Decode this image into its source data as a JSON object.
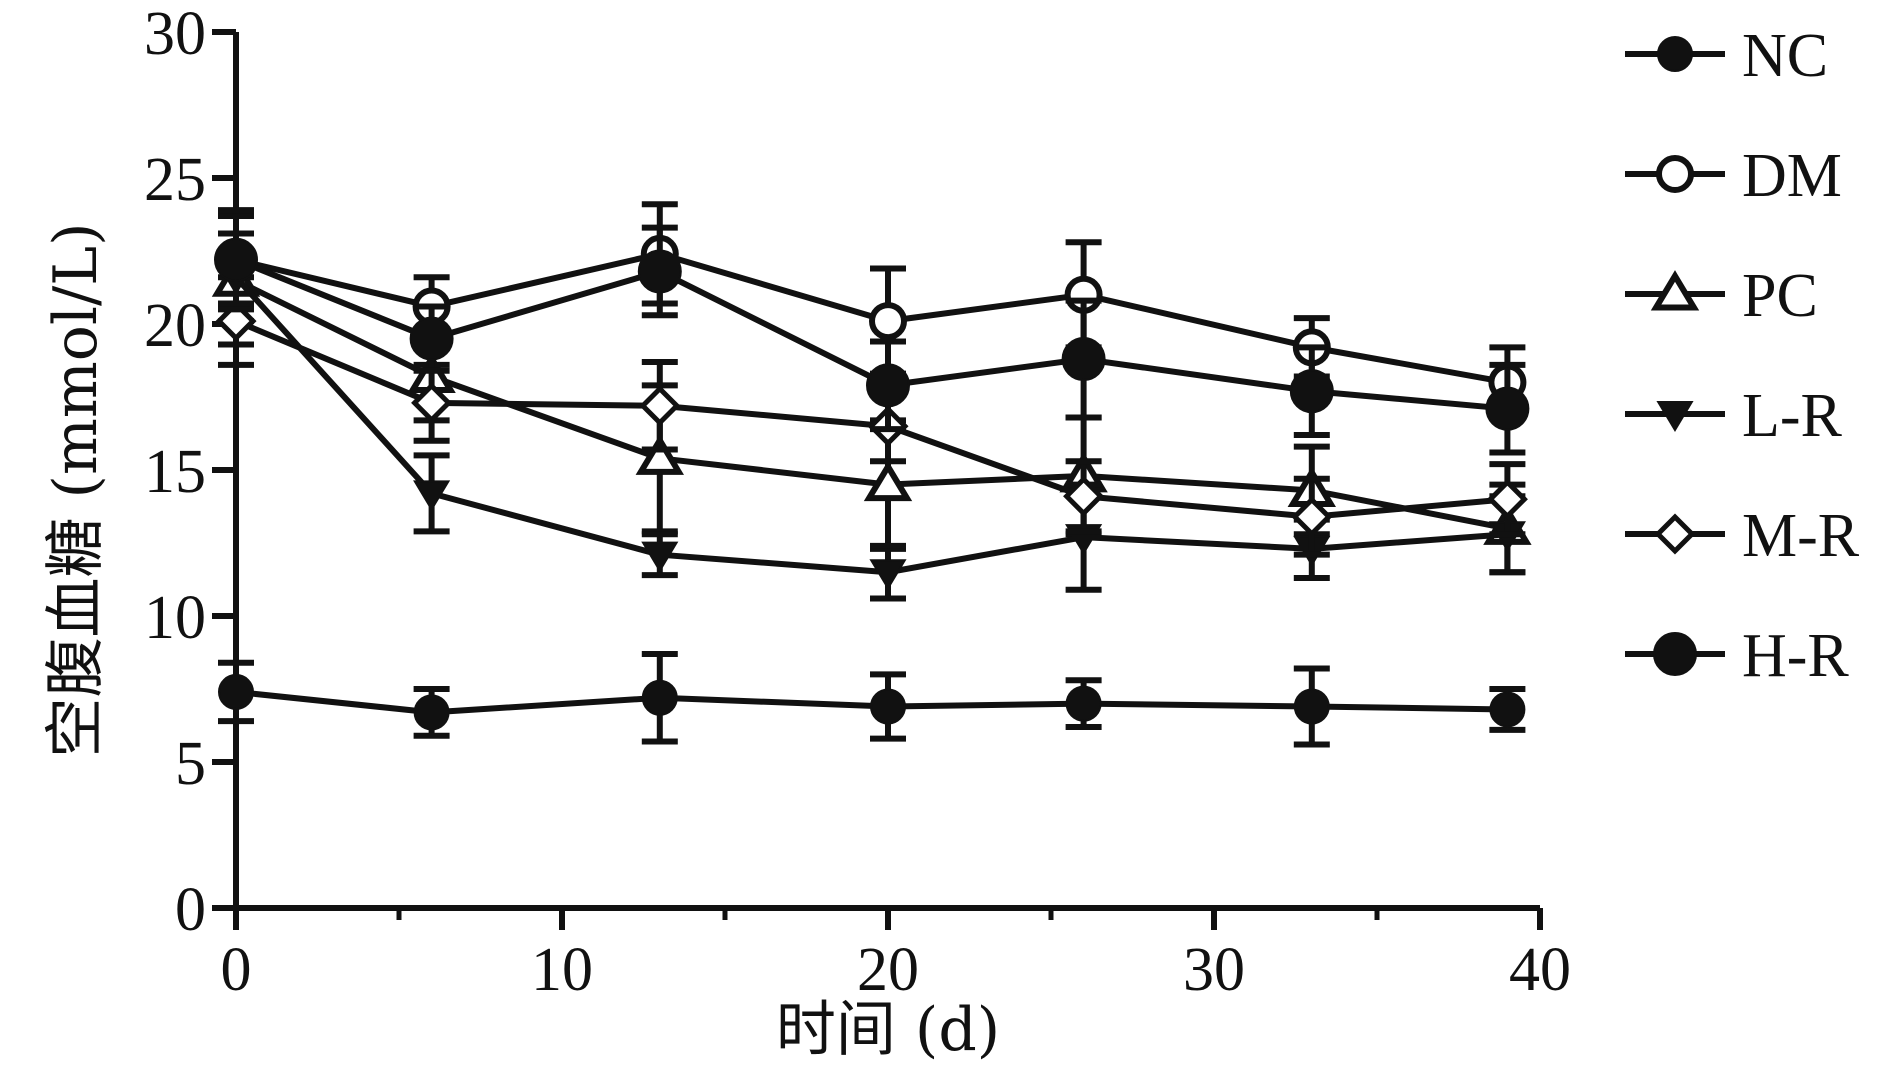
{
  "chart_data": {
    "type": "line",
    "title": "",
    "xlabel": "时间 (d)",
    "ylabel": "空腹血糖 (mmol/L)",
    "xlim": [
      0,
      40
    ],
    "ylim": [
      0,
      30
    ],
    "xticks": [
      0,
      10,
      20,
      30,
      40
    ],
    "yticks": [
      0,
      5,
      10,
      15,
      20,
      25,
      30
    ],
    "grid": false,
    "legend_position": "right",
    "x": [
      0,
      6,
      13,
      20,
      26,
      33,
      39
    ],
    "series": [
      {
        "name": "NC",
        "marker": "circle-filled",
        "values": [
          7.4,
          6.7,
          7.2,
          6.9,
          7.0,
          6.9,
          6.8
        ],
        "errors": [
          1.0,
          0.8,
          1.5,
          1.1,
          0.8,
          1.3,
          0.7
        ]
      },
      {
        "name": "DM",
        "marker": "circle-open",
        "values": [
          22.2,
          20.6,
          22.4,
          20.1,
          21.0,
          19.2,
          18.0
        ],
        "errors": [
          1.5,
          1.0,
          1.7,
          1.8,
          1.8,
          1.0,
          1.2
        ]
      },
      {
        "name": "PC",
        "marker": "triangle-up-open",
        "values": [
          21.5,
          18.2,
          15.4,
          14.5,
          14.8,
          14.3,
          13.0
        ],
        "errors": [
          2.2,
          1.5,
          2.5,
          2.2,
          2.0,
          1.5,
          1.5
        ]
      },
      {
        "name": "L-R",
        "marker": "triangle-down-filled",
        "values": [
          21.6,
          14.2,
          12.1,
          11.5,
          12.7,
          12.3,
          12.8
        ],
        "errors": [
          1.5,
          1.3,
          0.7,
          0.9,
          1.8,
          1.0,
          1.3
        ]
      },
      {
        "name": "M-R",
        "marker": "diamond-open",
        "values": [
          20.1,
          17.3,
          17.2,
          16.5,
          14.1,
          13.4,
          14.0
        ],
        "errors": [
          1.5,
          1.3,
          1.5,
          1.2,
          1.2,
          1.3,
          1.2
        ]
      },
      {
        "name": "H-R",
        "marker": "circle-filled-large",
        "values": [
          22.2,
          19.5,
          21.8,
          17.9,
          18.8,
          17.7,
          17.1
        ],
        "errors": [
          1.7,
          1.1,
          1.5,
          1.5,
          2.0,
          1.5,
          1.5
        ]
      }
    ]
  }
}
